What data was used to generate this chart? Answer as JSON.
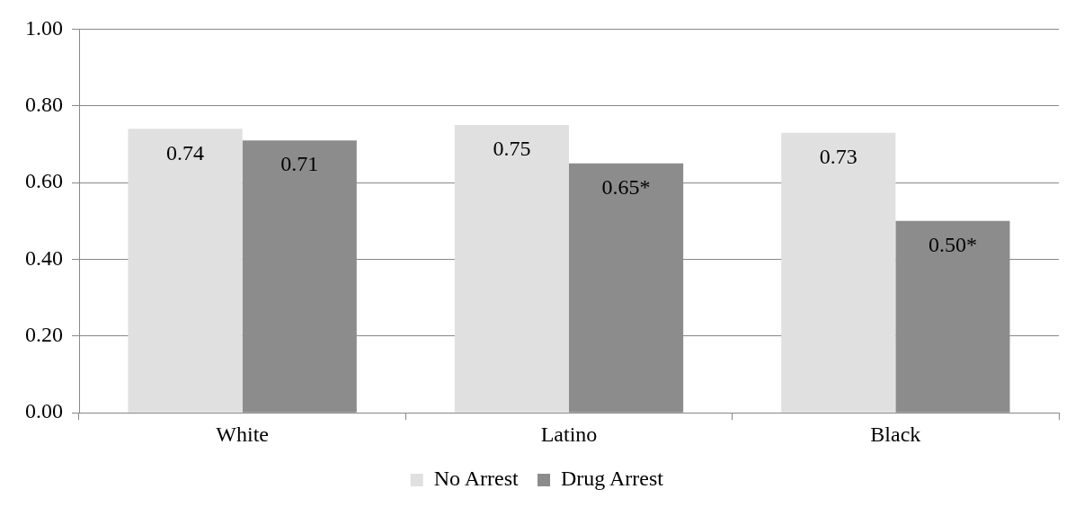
{
  "chart_data": {
    "type": "bar",
    "categories": [
      "White",
      "Latino",
      "Black"
    ],
    "series": [
      {
        "name": "No Arrest",
        "color": "#e0e0e0",
        "values": [
          0.74,
          0.75,
          0.73
        ],
        "value_labels": [
          "0.74",
          "0.75",
          "0.73"
        ]
      },
      {
        "name": "Drug Arrest",
        "color": "#8c8c8c",
        "values": [
          0.71,
          0.65,
          0.5
        ],
        "value_labels": [
          "0.71",
          "0.65*",
          "0.50*"
        ]
      }
    ],
    "ylim": [
      0,
      1
    ],
    "yticks": [
      {
        "value": 0,
        "label": "0.00"
      },
      {
        "value": 0.2,
        "label": "0.20"
      },
      {
        "value": 0.4,
        "label": "0.40"
      },
      {
        "value": 0.6,
        "label": "0.60"
      },
      {
        "value": 0.8,
        "label": "0.80"
      },
      {
        "value": 1,
        "label": "1.00"
      }
    ],
    "grid": "y",
    "legend": "bottom"
  }
}
